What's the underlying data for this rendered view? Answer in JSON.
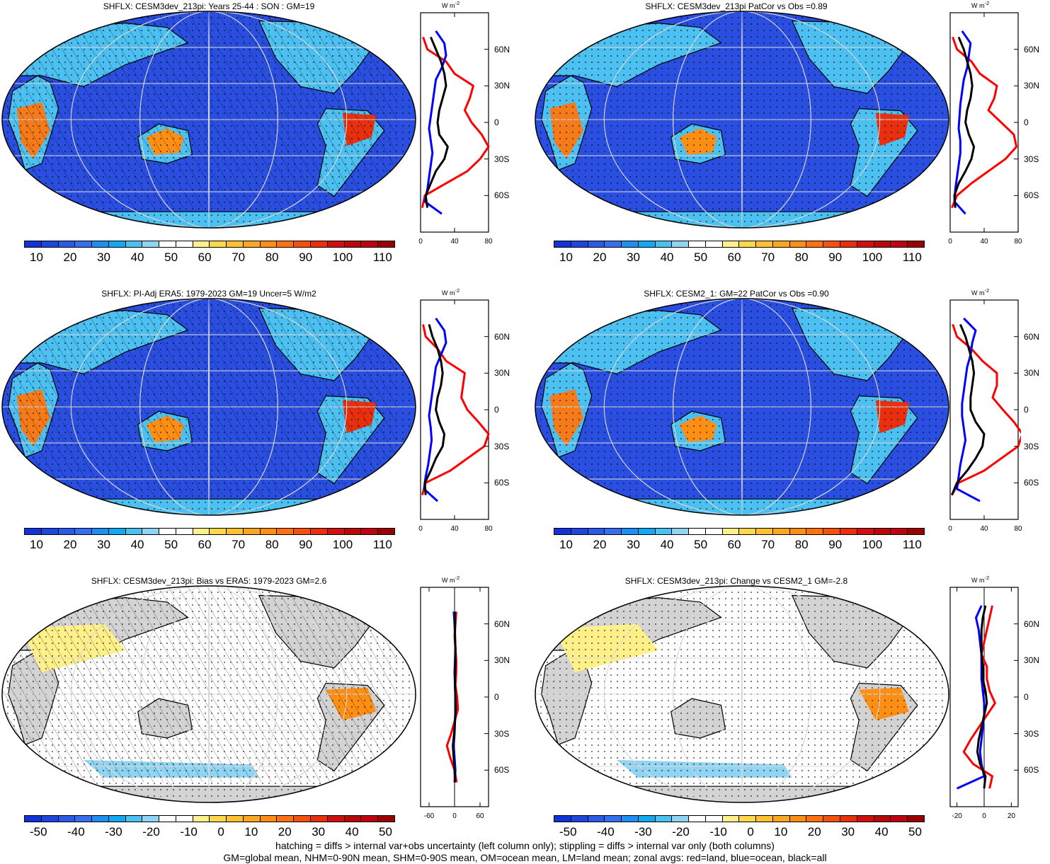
{
  "panels": [
    {
      "title": "SHFLX: CESM3dev_213pi: Years 25-44 : SON : GM=19",
      "kind": "abs",
      "hatch": true,
      "stipple": true
    },
    {
      "title": "SHFLX: CESM3dev_213pi PatCor vs Obs =0.89",
      "kind": "abs",
      "hatch": false,
      "stipple": true
    },
    {
      "title": "SHFLX: PI-Adj ERA5: 1979-2023 GM=19 Uncer=5 W/m2",
      "kind": "abs",
      "hatch": true,
      "stipple": true
    },
    {
      "title": "SHFLX: CESM2_1: GM=22 PatCor vs Obs =0.90",
      "kind": "abs",
      "hatch": false,
      "stipple": true
    },
    {
      "title": "SHFLX: CESM3dev_213pi: Bias vs ERA5: 1979-2023  GM=2.6",
      "kind": "diff",
      "hatch": true,
      "stipple": true
    },
    {
      "title": "SHFLX: CESM3dev_213pi: Change vs CESM2_1 GM=-2.8",
      "kind": "diff",
      "hatch": false,
      "stipple": true
    }
  ],
  "colorbar_abs": {
    "labels": [
      "10",
      "20",
      "30",
      "40",
      "50",
      "60",
      "70",
      "80",
      "90",
      "100",
      "110"
    ],
    "colors": [
      "#1433d6",
      "#1f45e0",
      "#2a5ae8",
      "#3670f0",
      "#1e8ff5",
      "#12a9f2",
      "#4cc0f0",
      "#8fd4f2",
      "#ffffff",
      "#ffffff",
      "#fff08a",
      "#ffd84a",
      "#ffc22e",
      "#ffa81f",
      "#ff8f14",
      "#ff720f",
      "#f5500e",
      "#e8300f",
      "#d01010",
      "#b80808",
      "#c00010",
      "#9a0000"
    ]
  },
  "colorbar_diff": {
    "labels": [
      "-50",
      "-40",
      "-30",
      "-20",
      "-10",
      "0",
      "10",
      "20",
      "30",
      "40",
      "50"
    ],
    "colors": [
      "#1433d6",
      "#1f45e0",
      "#2a5ae8",
      "#3670f0",
      "#1e8ff5",
      "#12a9f2",
      "#4cc0f0",
      "#8fd4f2",
      "#ffffff",
      "#ffffff",
      "#fff08a",
      "#ffd84a",
      "#ffc22e",
      "#ffa81f",
      "#ff8f14",
      "#ff720f",
      "#f5500e",
      "#e8300f",
      "#d01010",
      "#b80808",
      "#c00010",
      "#9a0000"
    ]
  },
  "zonal_unit": "W m",
  "zonal_unit_exp": "-2",
  "lat_labels": [
    "60N",
    "30N",
    "0",
    "30S",
    "60S"
  ],
  "zonal_xticks_abs": [
    "0",
    "40",
    "80"
  ],
  "zonal_xticks_bias": [
    "-60",
    "0",
    "60"
  ],
  "zonal_xticks_change": [
    "-20",
    "0",
    "20"
  ],
  "footer": {
    "line1": "hatching = diffs > internal var+obs uncertainty (left column only); stippling = diffs > internal var only (both columns)",
    "line2": "GM=global mean, NHM=0-90N mean, SHM=0-90S mean, OM=ocean mean, LM=land mean; zonal avgs: red=land, blue=ocean, black=all"
  },
  "chart_data": [
    {
      "type": "line",
      "title": "",
      "xlabel": "W m-2",
      "ylabel": "",
      "xlim": [
        0,
        80
      ],
      "ylim": [
        -90,
        90
      ],
      "x_unit": "latitude",
      "series": [
        {
          "name": "red=land",
          "color": "#ff0000",
          "lat": [
            -70,
            -60,
            -50,
            -40,
            -30,
            -20,
            -10,
            0,
            10,
            20,
            30,
            40,
            50,
            60,
            70
          ],
          "values": [
            2,
            5,
            30,
            55,
            70,
            80,
            72,
            60,
            52,
            58,
            62,
            40,
            30,
            8,
            3
          ]
        },
        {
          "name": "blue=ocean",
          "color": "#0000ff",
          "lat": [
            -75,
            -65,
            -55,
            -45,
            -35,
            -25,
            -15,
            -5,
            5,
            15,
            25,
            35,
            45,
            55,
            65,
            75
          ],
          "values": [
            25,
            5,
            8,
            10,
            12,
            14,
            12,
            10,
            12,
            14,
            16,
            18,
            25,
            30,
            28,
            18
          ]
        },
        {
          "name": "black=all",
          "color": "#000000",
          "lat": [
            -70,
            -60,
            -50,
            -40,
            -30,
            -20,
            -10,
            0,
            10,
            20,
            30,
            40,
            50,
            60,
            70
          ],
          "values": [
            8,
            6,
            12,
            18,
            28,
            32,
            22,
            20,
            22,
            26,
            30,
            28,
            24,
            18,
            12
          ]
        }
      ]
    },
    {
      "type": "line",
      "title": "",
      "xlabel": "W m-2",
      "ylabel": "",
      "xlim": [
        0,
        80
      ],
      "ylim": [
        -90,
        90
      ],
      "x_unit": "latitude",
      "series": [
        {
          "name": "red=land",
          "color": "#ff0000",
          "lat": [
            -70,
            -60,
            -50,
            -40,
            -30,
            -20,
            -10,
            0,
            10,
            20,
            30,
            40,
            50,
            60,
            70
          ],
          "values": [
            2,
            8,
            25,
            45,
            65,
            78,
            75,
            60,
            45,
            52,
            55,
            35,
            25,
            8,
            3
          ]
        },
        {
          "name": "blue=ocean",
          "color": "#0000ff",
          "lat": [
            -75,
            -65,
            -55,
            -45,
            -35,
            -25,
            -15,
            -5,
            5,
            15,
            25,
            35,
            45,
            55,
            65,
            75
          ],
          "values": [
            18,
            5,
            6,
            8,
            10,
            12,
            12,
            10,
            11,
            12,
            14,
            16,
            20,
            22,
            24,
            14
          ]
        },
        {
          "name": "black=all",
          "color": "#000000",
          "lat": [
            -70,
            -60,
            -50,
            -40,
            -30,
            -20,
            -10,
            0,
            10,
            20,
            30,
            40,
            50,
            60,
            70
          ],
          "values": [
            6,
            5,
            10,
            18,
            25,
            28,
            22,
            18,
            20,
            24,
            26,
            24,
            20,
            16,
            10
          ]
        }
      ]
    },
    {
      "type": "line",
      "title": "",
      "xlabel": "W m-2",
      "ylabel": "",
      "xlim": [
        0,
        80
      ],
      "ylim": [
        -90,
        90
      ],
      "x_unit": "latitude",
      "series": [
        {
          "name": "red=land",
          "color": "#ff0000",
          "lat": [
            -70,
            -60,
            -50,
            -40,
            -30,
            -20,
            -10,
            0,
            10,
            20,
            30,
            40,
            50,
            60,
            70
          ],
          "values": [
            2,
            6,
            35,
            55,
            75,
            80,
            68,
            55,
            48,
            50,
            52,
            30,
            20,
            6,
            3
          ]
        },
        {
          "name": "blue=ocean",
          "color": "#0000ff",
          "lat": [
            -75,
            -65,
            -55,
            -45,
            -35,
            -25,
            -15,
            -5,
            5,
            15,
            25,
            35,
            45,
            55,
            65,
            75
          ],
          "values": [
            20,
            4,
            6,
            9,
            11,
            13,
            12,
            10,
            12,
            14,
            16,
            18,
            24,
            30,
            28,
            18
          ]
        },
        {
          "name": "black=all",
          "color": "#000000",
          "lat": [
            -70,
            -60,
            -50,
            -40,
            -30,
            -20,
            -10,
            0,
            10,
            20,
            30,
            40,
            50,
            60,
            70
          ],
          "values": [
            6,
            5,
            12,
            18,
            26,
            28,
            22,
            18,
            20,
            24,
            26,
            24,
            20,
            14,
            10
          ]
        }
      ]
    },
    {
      "type": "line",
      "title": "",
      "xlabel": "W m-2",
      "ylabel": "",
      "xlim": [
        0,
        80
      ],
      "ylim": [
        -90,
        90
      ],
      "x_unit": "latitude",
      "series": [
        {
          "name": "red=land",
          "color": "#ff0000",
          "lat": [
            -70,
            -60,
            -50,
            -40,
            -30,
            -20,
            -10,
            0,
            10,
            20,
            30,
            40,
            50,
            60,
            70
          ],
          "values": [
            2,
            10,
            40,
            60,
            80,
            85,
            75,
            62,
            50,
            55,
            55,
            38,
            25,
            8,
            3
          ]
        },
        {
          "name": "blue=ocean",
          "color": "#0000ff",
          "lat": [
            -75,
            -65,
            -55,
            -45,
            -35,
            -25,
            -15,
            -5,
            5,
            15,
            25,
            35,
            45,
            55,
            65,
            75
          ],
          "values": [
            35,
            8,
            10,
            12,
            15,
            18,
            16,
            14,
            14,
            16,
            18,
            20,
            24,
            26,
            30,
            16
          ]
        },
        {
          "name": "black=all",
          "color": "#000000",
          "lat": [
            -70,
            -60,
            -50,
            -40,
            -30,
            -20,
            -10,
            0,
            10,
            20,
            30,
            40,
            50,
            60,
            70
          ],
          "values": [
            2,
            8,
            20,
            30,
            38,
            40,
            30,
            24,
            24,
            26,
            28,
            26,
            22,
            18,
            12
          ]
        }
      ]
    },
    {
      "type": "line",
      "title": "",
      "xlabel": "W m-2",
      "ylabel": "",
      "xlim": [
        -80,
        80
      ],
      "ylim": [
        -90,
        90
      ],
      "x_unit": "latitude",
      "series": [
        {
          "name": "red=land",
          "color": "#ff0000",
          "lat": [
            -70,
            -60,
            -50,
            -40,
            -30,
            -20,
            -10,
            0,
            10,
            20,
            30,
            40,
            50,
            60,
            70
          ],
          "values": [
            5,
            0,
            -10,
            -18,
            -8,
            0,
            8,
            6,
            2,
            4,
            4,
            2,
            0,
            2,
            4
          ]
        },
        {
          "name": "blue=ocean",
          "color": "#0000ff",
          "lat": [
            -70,
            -60,
            -50,
            -40,
            -30,
            -20,
            -10,
            0,
            10,
            20,
            30,
            40,
            50,
            60,
            70
          ],
          "values": [
            0,
            2,
            0,
            -2,
            0,
            1,
            2,
            2,
            1,
            0,
            1,
            2,
            1,
            0,
            -2
          ]
        },
        {
          "name": "black=all",
          "color": "#000000",
          "lat": [
            -70,
            -60,
            -50,
            -40,
            -30,
            -20,
            -10,
            0,
            10,
            20,
            30,
            40,
            50,
            60,
            70
          ],
          "values": [
            1,
            0,
            -2,
            -4,
            -1,
            1,
            3,
            2,
            1,
            1,
            2,
            2,
            1,
            1,
            1
          ]
        }
      ]
    },
    {
      "type": "line",
      "title": "",
      "xlabel": "W m-2",
      "ylabel": "",
      "xlim": [
        -25,
        25
      ],
      "ylim": [
        -90,
        90
      ],
      "x_unit": "latitude",
      "series": [
        {
          "name": "red=land",
          "color": "#ff0000",
          "lat": [
            -75,
            -65,
            -55,
            -45,
            -35,
            -25,
            -15,
            -5,
            5,
            15,
            25,
            35,
            45,
            55,
            65,
            75
          ],
          "values": [
            4,
            6,
            -8,
            -15,
            -10,
            -4,
            2,
            8,
            4,
            2,
            2,
            -2,
            0,
            2,
            4,
            6
          ]
        },
        {
          "name": "blue=ocean",
          "color": "#0000ff",
          "lat": [
            -75,
            -65,
            -55,
            -45,
            -35,
            -25,
            -15,
            -5,
            5,
            15,
            25,
            35,
            45,
            55,
            65,
            75
          ],
          "values": [
            -20,
            0,
            -2,
            -3,
            -2,
            -1,
            0,
            0,
            -1,
            -2,
            -2,
            -2,
            -3,
            -4,
            -6,
            -2
          ]
        },
        {
          "name": "black=all",
          "color": "#000000",
          "lat": [
            -75,
            -65,
            -55,
            -45,
            -35,
            -25,
            -15,
            -5,
            5,
            15,
            25,
            35,
            45,
            55,
            65,
            75
          ],
          "values": [
            0,
            1,
            -3,
            -5,
            -4,
            -2,
            0,
            2,
            1,
            -1,
            -1,
            -2,
            -2,
            -2,
            -1,
            1
          ]
        }
      ]
    }
  ]
}
